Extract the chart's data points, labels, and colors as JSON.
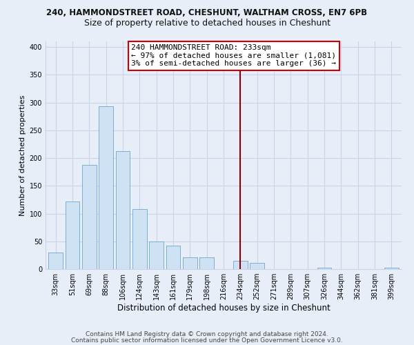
{
  "title_line1": "240, HAMMONDSTREET ROAD, CHESHUNT, WALTHAM CROSS, EN7 6PB",
  "title_line2": "Size of property relative to detached houses in Cheshunt",
  "xlabel": "Distribution of detached houses by size in Cheshunt",
  "ylabel": "Number of detached properties",
  "bar_labels": [
    "33sqm",
    "51sqm",
    "69sqm",
    "88sqm",
    "106sqm",
    "124sqm",
    "143sqm",
    "161sqm",
    "179sqm",
    "198sqm",
    "216sqm",
    "234sqm",
    "252sqm",
    "271sqm",
    "289sqm",
    "307sqm",
    "326sqm",
    "344sqm",
    "362sqm",
    "381sqm",
    "399sqm"
  ],
  "bar_heights": [
    30,
    122,
    188,
    293,
    212,
    108,
    50,
    42,
    21,
    21,
    0,
    15,
    11,
    0,
    0,
    0,
    2,
    0,
    0,
    0,
    2
  ],
  "bar_color": "#cfe2f3",
  "bar_edge_color": "#7bafd4",
  "vline_x": 11,
  "vline_color": "#880000",
  "annotation_text": "240 HAMMONDSTREET ROAD: 233sqm\n← 97% of detached houses are smaller (1,081)\n3% of semi-detached houses are larger (36) →",
  "annotation_box_edge": "#cc0000",
  "ylim": [
    0,
    410
  ],
  "yticks": [
    0,
    50,
    100,
    150,
    200,
    250,
    300,
    350,
    400
  ],
  "footer_line1": "Contains HM Land Registry data © Crown copyright and database right 2024.",
  "footer_line2": "Contains public sector information licensed under the Open Government Licence v3.0.",
  "background_color": "#e8eef8",
  "grid_color": "#c8d4e8",
  "title1_fontsize": 8.5,
  "title2_fontsize": 9,
  "tick_fontsize": 7,
  "xlabel_fontsize": 8.5,
  "ylabel_fontsize": 8,
  "footer_fontsize": 6.5,
  "annot_fontsize": 8
}
